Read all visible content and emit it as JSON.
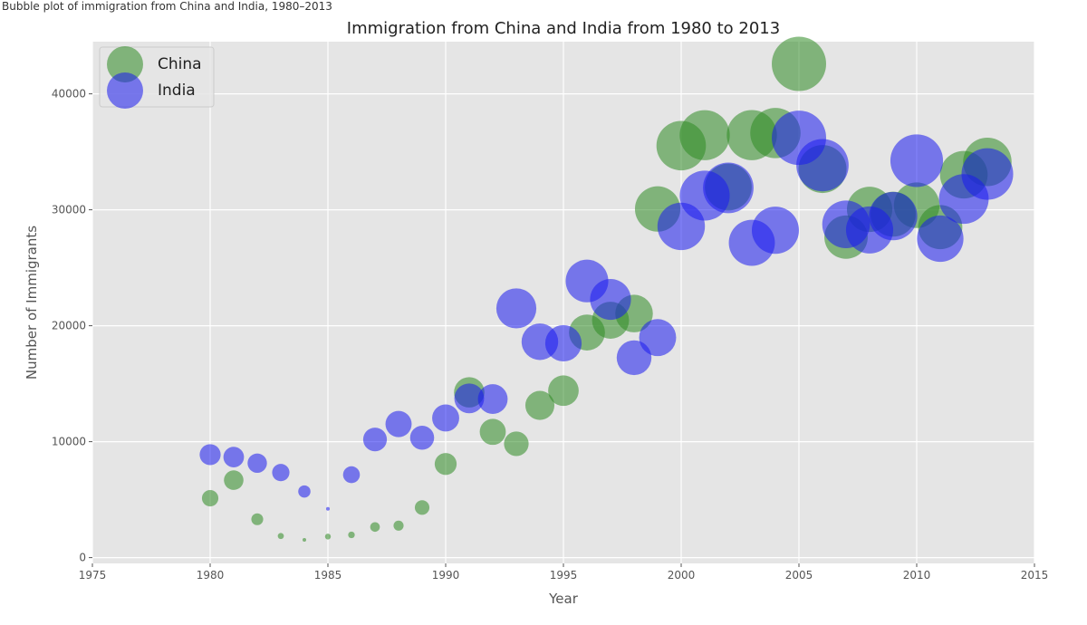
{
  "caption": "Bubble plot of immigration from China and India, 1980–2013",
  "chart_data": {
    "type": "scatter",
    "title": "Immigration from China and India from 1980 to 2013",
    "xlabel": "Year",
    "ylabel": "Number of Immigrants",
    "xlim": [
      1975,
      2015
    ],
    "ylim": [
      -500,
      44500
    ],
    "xticks": [
      1975,
      1980,
      1985,
      1990,
      1995,
      2000,
      2005,
      2010,
      2015
    ],
    "yticks": [
      0,
      10000,
      20000,
      30000,
      40000
    ],
    "grid": true,
    "legend": "top-left",
    "series": [
      {
        "name": "China",
        "color": "#2e8b22",
        "x": [
          1980,
          1981,
          1982,
          1983,
          1984,
          1985,
          1986,
          1987,
          1988,
          1989,
          1990,
          1991,
          1992,
          1993,
          1994,
          1995,
          1996,
          1997,
          1998,
          1999,
          2000,
          2001,
          2002,
          2003,
          2004,
          2005,
          2006,
          2007,
          2008,
          2009,
          2010,
          2011,
          2012,
          2013
        ],
        "y": [
          5123,
          6682,
          3308,
          1863,
          1527,
          1816,
          1960,
          2643,
          2758,
          4323,
          8076,
          14255,
          10846,
          9817,
          13128,
          14398,
          19415,
          20475,
          21049,
          30069,
          35529,
          36434,
          31961,
          36439,
          36619,
          42584,
          33518,
          27642,
          30037,
          29622,
          30391,
          28502,
          33024,
          34129
        ]
      },
      {
        "name": "India",
        "color": "#1a1aee",
        "x": [
          1980,
          1981,
          1982,
          1983,
          1984,
          1985,
          1986,
          1987,
          1988,
          1989,
          1990,
          1991,
          1992,
          1993,
          1994,
          1995,
          1996,
          1997,
          1998,
          1999,
          2000,
          2001,
          2002,
          2003,
          2004,
          2005,
          2006,
          2007,
          2008,
          2009,
          2010,
          2011,
          2012,
          2013
        ],
        "y": [
          8880,
          8670,
          8147,
          7338,
          5704,
          4211,
          7150,
          10189,
          11522,
          10343,
          12041,
          13734,
          13673,
          21496,
          18620,
          18489,
          23859,
          22268,
          17241,
          18974,
          28572,
          31223,
          31889,
          27155,
          28235,
          36210,
          33848,
          28742,
          28261,
          29456,
          34235,
          27509,
          30933,
          33087
        ]
      }
    ]
  }
}
